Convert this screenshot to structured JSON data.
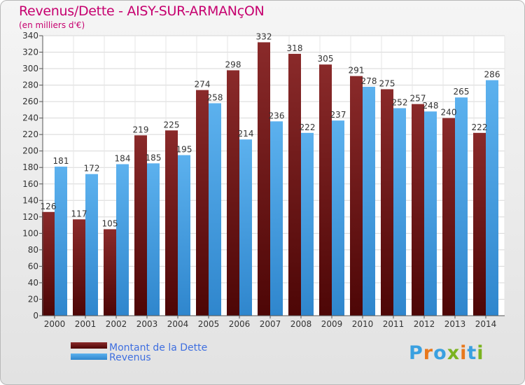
{
  "title": "Revenus/Dette - AISY-SUR-ARMANçON",
  "subtitle": "(en milliers d'€)",
  "logo": {
    "letters": [
      "P",
      "r",
      "o",
      "x",
      "i",
      "t",
      "i"
    ]
  },
  "colors": {
    "title": "#c6006f",
    "dette": "#6e1111",
    "revenus": "#3a95d9",
    "legend_text": "#3f6fe0",
    "logo": [
      "#3aa0e0",
      "#e8781c",
      "#3aa0e0",
      "#7bb320",
      "#e8781c",
      "#3aa0e0",
      "#7bb320"
    ]
  },
  "chart_data": {
    "type": "bar",
    "categories": [
      "2000",
      "2001",
      "2002",
      "2003",
      "2004",
      "2005",
      "2006",
      "2007",
      "2008",
      "2009",
      "2010",
      "2011",
      "2012",
      "2013",
      "2014"
    ],
    "series": [
      {
        "name": "Montant de la Dette",
        "values": [
          126,
          117,
          105,
          219,
          225,
          274,
          298,
          332,
          318,
          305,
          291,
          275,
          257,
          240,
          222
        ]
      },
      {
        "name": "Revenus",
        "values": [
          181,
          172,
          184,
          185,
          195,
          258,
          214,
          236,
          222,
          237,
          278,
          252,
          248,
          265,
          286
        ]
      }
    ],
    "ylim": [
      0,
      340
    ],
    "ytick_step": 20,
    "grid": true,
    "legend_position": "bottom-left"
  }
}
